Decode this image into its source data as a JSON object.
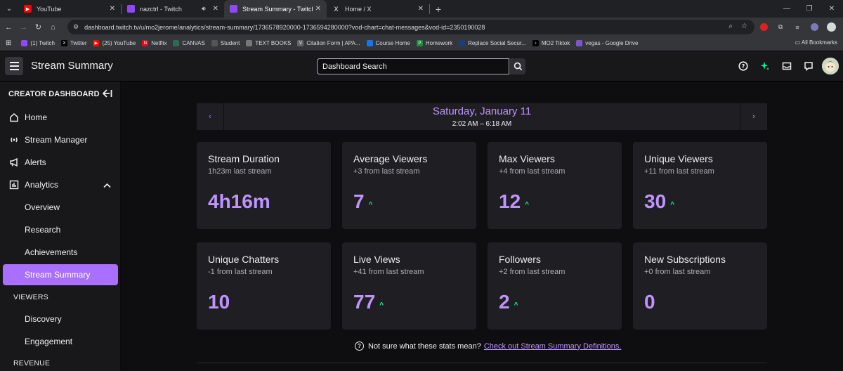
{
  "browser": {
    "tabs": [
      {
        "title": "YouTube",
        "favicon": "youtube-icon",
        "color": "#ff0000",
        "active": false
      },
      {
        "title": "nazctrl - Twitch",
        "favicon": "twitch-icon",
        "color": "#9146ff",
        "active": false,
        "audio": true
      },
      {
        "title": "Stream Summary - Twitch",
        "favicon": "twitch-icon",
        "color": "#9146ff",
        "active": true
      },
      {
        "title": "Home / X",
        "favicon": "x-icon",
        "color": "#000000",
        "active": false
      }
    ],
    "url": "dashboard.twitch.tv/u/mo2jerome/analytics/stream-summary/1736578920000-1736594280000?vod-chart=chat-messages&vod-id=2350190028",
    "bookmarks": [
      {
        "label": "(1) Twitch",
        "color": "#9146ff"
      },
      {
        "label": "Twitter",
        "color": "#000000"
      },
      {
        "label": "(25) YouTube",
        "color": "#ff0000"
      },
      {
        "label": "Netflix",
        "color": "#e50914"
      },
      {
        "label": "CANVAS",
        "color": "#2d6a4f"
      },
      {
        "label": "Student",
        "color": "#555555"
      },
      {
        "label": "TEXT BOOKS",
        "color": "#777777"
      },
      {
        "label": "Citation Form | APA...",
        "color": "#666666"
      },
      {
        "label": "Course Home",
        "color": "#1a73e8"
      },
      {
        "label": "Homework",
        "color": "#1e8e3e"
      },
      {
        "label": "Replace Social Secur...",
        "color": "#1a3d7c"
      },
      {
        "label": "MO2 Tiktok",
        "color": "#000000"
      },
      {
        "label": "vegas - Google Drive",
        "color": "#7b57c8"
      }
    ],
    "all_bookmarks": "All Bookmarks"
  },
  "header": {
    "title": "Stream Summary",
    "search_placeholder": "Dashboard Search"
  },
  "sidebar": {
    "heading": "CREATOR DASHBOARD",
    "items": [
      {
        "label": "Home",
        "icon": "home-icon"
      },
      {
        "label": "Stream Manager",
        "icon": "broadcast-icon"
      },
      {
        "label": "Alerts",
        "icon": "megaphone-icon"
      },
      {
        "label": "Analytics",
        "icon": "analytics-icon",
        "expanded": true
      }
    ],
    "analytics_sub": [
      {
        "label": "Overview"
      },
      {
        "label": "Research"
      },
      {
        "label": "Achievements"
      },
      {
        "label": "Stream Summary",
        "active": true
      }
    ],
    "viewers_section": "VIEWERS",
    "viewers_sub": [
      {
        "label": "Discovery"
      },
      {
        "label": "Engagement"
      }
    ],
    "revenue_section": "REVENUE"
  },
  "summary": {
    "date": "Saturday, January 11",
    "time_range": "2:02 AM – 6:18 AM",
    "cards": [
      {
        "title": "Stream Duration",
        "subtitle": "1h23m last stream",
        "value": "4h16m",
        "trend_up": false
      },
      {
        "title": "Average Viewers",
        "subtitle": "+3 from last stream",
        "value": "7",
        "trend_up": true
      },
      {
        "title": "Max Viewers",
        "subtitle": "+4 from last stream",
        "value": "12",
        "trend_up": true
      },
      {
        "title": "Unique Viewers",
        "subtitle": "+11 from last stream",
        "value": "30",
        "trend_up": true
      },
      {
        "title": "Unique Chatters",
        "subtitle": "-1 from last stream",
        "value": "10",
        "trend_up": false
      },
      {
        "title": "Live Views",
        "subtitle": "+41 from last stream",
        "value": "77",
        "trend_up": true
      },
      {
        "title": "Followers",
        "subtitle": "+2 from last stream",
        "value": "2",
        "trend_up": true
      },
      {
        "title": "New Subscriptions",
        "subtitle": "+0 from last stream",
        "value": "0",
        "trend_up": false
      }
    ],
    "help_text": "Not sure what these stats mean?",
    "help_link": "Check out Stream Summary Definitions."
  },
  "colors": {
    "accent": "#a970ff",
    "accent_text": "#bf94ff",
    "trend_up": "#00f593",
    "card_bg": "#1f1f23",
    "page_bg": "#0e0e10"
  }
}
